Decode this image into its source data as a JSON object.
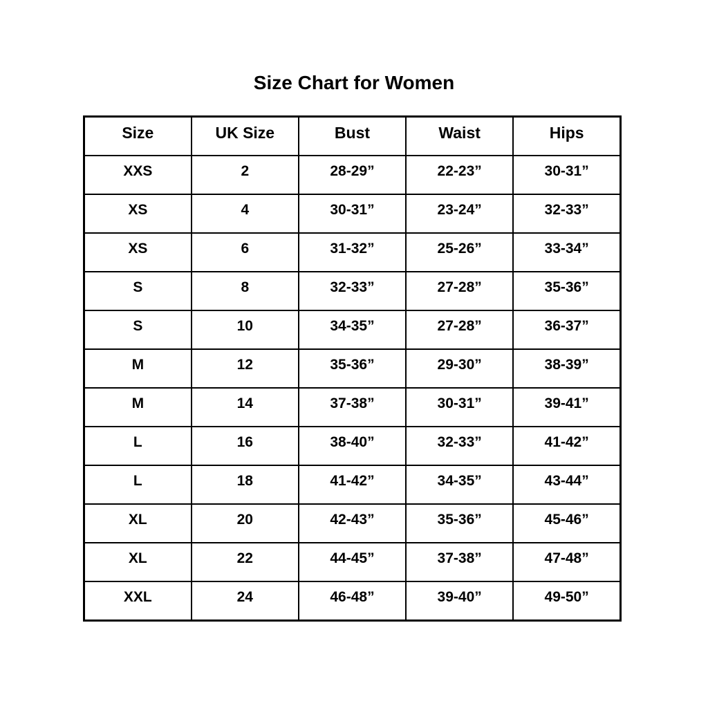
{
  "page": {
    "title": "Size Chart for Women",
    "background_color": "#ffffff",
    "text_color": "#000000",
    "border_color": "#000000"
  },
  "table": {
    "columns": [
      "Size",
      "UK Size",
      "Bust",
      "Waist",
      "Hips"
    ],
    "rows": [
      [
        "XXS",
        "2",
        "28-29”",
        "22-23”",
        "30-31”"
      ],
      [
        "XS",
        "4",
        "30-31”",
        "23-24”",
        "32-33”"
      ],
      [
        "XS",
        "6",
        "31-32”",
        "25-26”",
        "33-34”"
      ],
      [
        "S",
        "8",
        "32-33”",
        "27-28”",
        "35-36”"
      ],
      [
        "S",
        "10",
        "34-35”",
        "27-28”",
        "36-37”"
      ],
      [
        "M",
        "12",
        "35-36”",
        "29-30”",
        "38-39”"
      ],
      [
        "M",
        "14",
        "37-38”",
        "30-31”",
        "39-41”"
      ],
      [
        "L",
        "16",
        "38-40”",
        "32-33”",
        "41-42”"
      ],
      [
        "L",
        "18",
        "41-42”",
        "34-35”",
        "43-44”"
      ],
      [
        "XL",
        "20",
        "42-43”",
        "35-36”",
        "45-46”"
      ],
      [
        "XL",
        "22",
        "44-45”",
        "37-38”",
        "47-48”"
      ],
      [
        "XXL",
        "24",
        "46-48”",
        "39-40”",
        "49-50”"
      ]
    ]
  }
}
